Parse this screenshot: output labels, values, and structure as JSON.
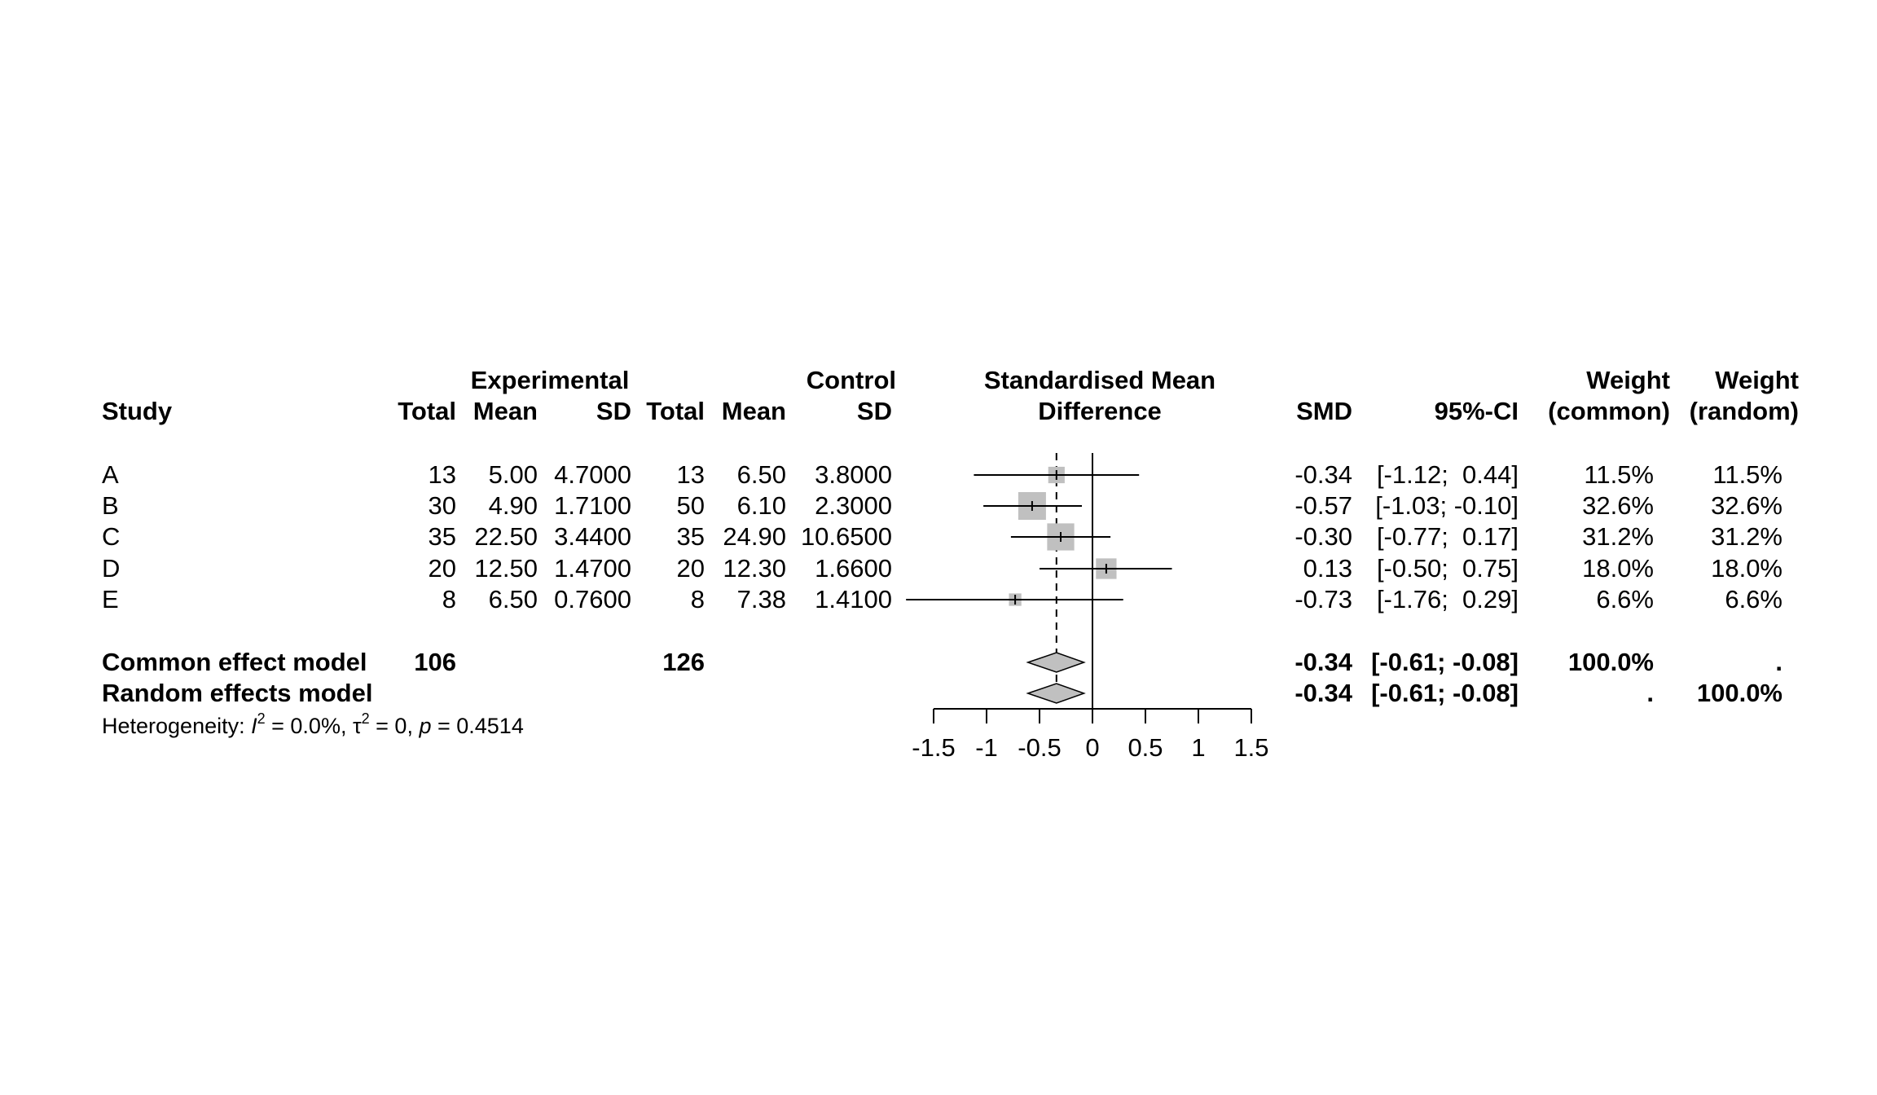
{
  "header": {
    "study": "Study",
    "experimental": "Experimental",
    "control": "Control",
    "exp_total": "Total",
    "exp_mean": "Mean",
    "exp_sd": "SD",
    "ctl_total": "Total",
    "ctl_mean": "Mean",
    "ctl_sd": "SD",
    "effect_line1": "Standardised Mean",
    "effect_line2": "Difference",
    "smd": "SMD",
    "ci": "95%-CI",
    "weight_common_1": "Weight",
    "weight_common_2": "(common)",
    "weight_random_1": "Weight",
    "weight_random_2": "(random)"
  },
  "studies": [
    {
      "name": "A",
      "e_total": "13",
      "e_mean": "5.00",
      "e_sd": "4.7000",
      "c_total": "13",
      "c_mean": "6.50",
      "c_sd": "3.8000",
      "smd": "-0.34",
      "ci": "[-1.12;  0.44]",
      "w_common": "11.5%",
      "w_random": "11.5%"
    },
    {
      "name": "B",
      "e_total": "30",
      "e_mean": "4.90",
      "e_sd": "1.7100",
      "c_total": "50",
      "c_mean": "6.10",
      "c_sd": "2.3000",
      "smd": "-0.57",
      "ci": "[-1.03; -0.10]",
      "w_common": "32.6%",
      "w_random": "32.6%"
    },
    {
      "name": "C",
      "e_total": "35",
      "e_mean": "22.50",
      "e_sd": "3.4400",
      "c_total": "35",
      "c_mean": "24.90",
      "c_sd": "10.6500",
      "smd": "-0.30",
      "ci": "[-0.77;  0.17]",
      "w_common": "31.2%",
      "w_random": "31.2%"
    },
    {
      "name": "D",
      "e_total": "20",
      "e_mean": "12.50",
      "e_sd": "1.4700",
      "c_total": "20",
      "c_mean": "12.30",
      "c_sd": "1.6600",
      "smd": "0.13",
      "ci": "[-0.50;  0.75]",
      "w_common": "18.0%",
      "w_random": "18.0%"
    },
    {
      "name": "E",
      "e_total": "8",
      "e_mean": "6.50",
      "e_sd": "0.7600",
      "c_total": "8",
      "c_mean": "7.38",
      "c_sd": "1.4100",
      "smd": "-0.73",
      "ci": "[-1.76;  0.29]",
      "w_common": "6.6%",
      "w_random": "6.6%"
    }
  ],
  "summary": {
    "common": {
      "label": "Common effect model",
      "e_total": "106",
      "c_total": "126",
      "smd": "-0.34",
      "ci": "[-0.61; -0.08]",
      "w_common": "100.0%",
      "w_random": "."
    },
    "random": {
      "label": "Random effects model",
      "smd": "-0.34",
      "ci": "[-0.61; -0.08]",
      "w_common": ".",
      "w_random": "100.0%"
    }
  },
  "heterogeneity": {
    "prefix": "Heterogeneity: ",
    "i2_symbol": "I",
    "i2_sup": "2",
    "i2_value": " = 0.0%, ",
    "tau_symbol": "τ",
    "tau_sup": "2",
    "tau_value": " = 0, ",
    "p_symbol": "p",
    "p_value": " = 0.4514"
  },
  "chart_data": {
    "type": "forest",
    "xlim": [
      -1.5,
      1.5
    ],
    "ticks": [
      -1.5,
      -1,
      -0.5,
      0,
      0.5,
      1,
      1.5
    ],
    "tick_labels": [
      "-1.5",
      "-1",
      "-0.5",
      "0",
      "0.5",
      "1",
      "1.5"
    ],
    "null_line": 0,
    "pooled_line": -0.34,
    "studies": [
      {
        "name": "A",
        "estimate": -0.34,
        "lower": -1.12,
        "upper": 0.44,
        "weight": 11.5
      },
      {
        "name": "B",
        "estimate": -0.57,
        "lower": -1.03,
        "upper": -0.1,
        "weight": 32.6
      },
      {
        "name": "C",
        "estimate": -0.3,
        "lower": -0.77,
        "upper": 0.17,
        "weight": 31.2
      },
      {
        "name": "D",
        "estimate": 0.13,
        "lower": -0.5,
        "upper": 0.75,
        "weight": 18.0
      },
      {
        "name": "E",
        "estimate": -0.73,
        "lower": -1.76,
        "upper": 0.29,
        "weight": 6.6
      }
    ],
    "pooled": [
      {
        "name": "Common effect model",
        "estimate": -0.34,
        "lower": -0.61,
        "upper": -0.08
      },
      {
        "name": "Random effects model",
        "estimate": -0.34,
        "lower": -0.61,
        "upper": -0.08
      }
    ],
    "colors": {
      "square": "#c0c0c0",
      "diamond": "#c0c0c0",
      "line": "#000000"
    }
  }
}
